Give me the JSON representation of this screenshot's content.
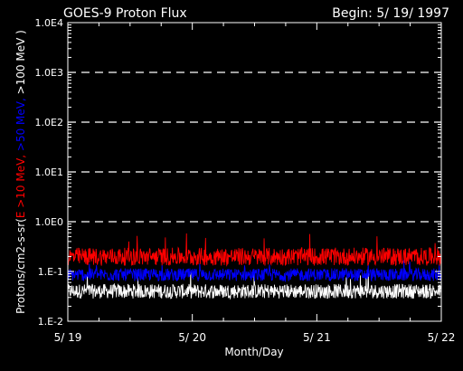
{
  "chart_data": {
    "type": "line",
    "title": "GOES-9 Proton Flux",
    "begin_label": "Begin: 5/ 19/ 1997",
    "xlabel": "Month/Day",
    "ylabel_parts": [
      {
        "text": "Protons/cm2-s-sr(",
        "color": "#ffffff"
      },
      {
        "text": "E >10 MeV, ",
        "color": "#ff0000"
      },
      {
        "text": ">50 MeV, ",
        "color": "#0000ff"
      },
      {
        "text": ">100 MeV )",
        "color": "#ffffff"
      }
    ],
    "y_scale": "log",
    "ylim": [
      0.01,
      10000
    ],
    "xlim_days": [
      0,
      3
    ],
    "x_tick_labels": [
      "5/ 19",
      "5/ 20",
      "5/ 21",
      "5/ 22"
    ],
    "y_tick_labels": [
      "1.E-2",
      "1.E-1",
      "1.0E0",
      "1.0E1",
      "1.0E2",
      "1.0E3",
      "1.0E4"
    ],
    "gridlines_dashed_at": [
      1,
      10,
      100,
      1000
    ],
    "background": "#000000",
    "axis_color": "#ffffff",
    "series": [
      {
        "label": ">10 MeV",
        "color": "#ff0000",
        "baseline": 0.17,
        "min": 0.11,
        "max": 0.6
      },
      {
        "label": ">50 MeV",
        "color": "#0000ff",
        "baseline": 0.08,
        "min": 0.055,
        "max": 0.18
      },
      {
        "label": ">100 MeV",
        "color": "#ffffff",
        "baseline": 0.035,
        "min": 0.025,
        "max": 0.1
      }
    ]
  }
}
